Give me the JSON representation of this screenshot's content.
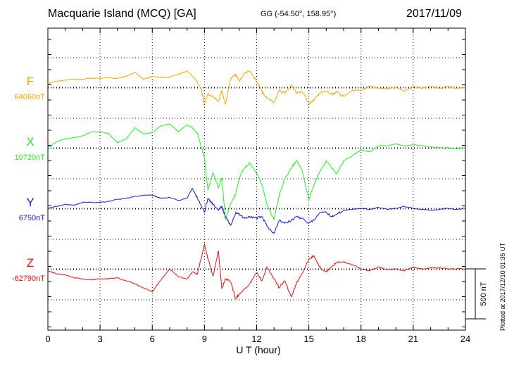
{
  "header": {
    "title": "Macquarie Island (MCQ)  [GA]",
    "coords": "GG (-54.50°, 158.95°)",
    "date": "2017/11/09"
  },
  "footer": {
    "plotted": "Plotted at 2017/12/10 01:35 UT"
  },
  "chart_data": {
    "type": "line",
    "xlabel": "U T (hour)",
    "xlim": [
      0,
      24
    ],
    "xticks": [
      "0",
      "3",
      "6",
      "9",
      "12",
      "15",
      "18",
      "21",
      "24"
    ],
    "scale_bar_label": "500 nT",
    "scale_bar_nT": 500,
    "grid": true,
    "series": [
      {
        "name": "F",
        "baseline_label": "64060nT",
        "color": "#f0a800",
        "x": [
          0,
          0.5,
          1,
          1.5,
          2,
          2.5,
          3,
          3.5,
          4,
          4.5,
          5,
          5.5,
          6,
          6.5,
          7,
          7.5,
          8,
          8.5,
          8.8,
          9,
          9.2,
          9.5,
          9.8,
          10,
          10.2,
          10.5,
          10.8,
          11,
          11.3,
          11.6,
          12,
          12.3,
          12.6,
          13,
          13.3,
          13.6,
          14,
          14.3,
          14.6,
          15,
          15.3,
          15.6,
          16,
          16.3,
          16.6,
          17,
          17.5,
          18,
          18.5,
          19,
          19.5,
          20,
          20.5,
          21,
          21.5,
          22,
          22.5,
          23,
          23.5,
          24
        ],
        "y": [
          40,
          60,
          70,
          80,
          80,
          90,
          90,
          95,
          90,
          110,
          150,
          80,
          110,
          100,
          100,
          130,
          160,
          80,
          -20,
          -160,
          -70,
          -90,
          -140,
          -30,
          -170,
          80,
          130,
          60,
          140,
          160,
          60,
          -40,
          -110,
          -150,
          -30,
          -60,
          20,
          -60,
          -40,
          -160,
          -130,
          -60,
          -40,
          -70,
          -50,
          -90,
          -30,
          -30,
          10,
          -10,
          -20,
          0,
          -40,
          10,
          -10,
          10,
          -10,
          10,
          -10,
          0
        ]
      },
      {
        "name": "X",
        "baseline_label": "10720nT",
        "color": "#22ee22",
        "x": [
          0,
          0.5,
          1,
          1.5,
          2,
          2.5,
          3,
          3.5,
          4,
          4.5,
          5,
          5.5,
          6,
          6.5,
          7,
          7.5,
          8,
          8.3,
          8.6,
          9,
          9.2,
          9.5,
          9.8,
          10,
          10.2,
          10.5,
          10.8,
          11,
          11.3,
          11.6,
          12,
          12.3,
          12.6,
          13,
          13.3,
          13.6,
          14,
          14.3,
          14.6,
          15,
          15.3,
          15.6,
          16,
          16.3,
          16.6,
          17,
          17.5,
          18,
          18.5,
          19,
          19.5,
          20,
          20.5,
          21,
          21.5,
          22,
          22.5,
          23,
          23.5,
          24
        ],
        "y": [
          0,
          60,
          90,
          100,
          120,
          160,
          160,
          140,
          50,
          90,
          200,
          140,
          150,
          220,
          240,
          160,
          230,
          200,
          140,
          -100,
          -420,
          -250,
          -400,
          -300,
          -720,
          -560,
          -460,
          -300,
          -200,
          -150,
          -250,
          -370,
          -570,
          -720,
          -470,
          -320,
          -200,
          -130,
          -220,
          -520,
          -370,
          -250,
          -130,
          -200,
          -260,
          -130,
          -80,
          -20,
          -40,
          20,
          20,
          40,
          20,
          30,
          20,
          10,
          0,
          0,
          -10,
          0
        ]
      },
      {
        "name": "Y",
        "baseline_label": "6750nT",
        "color": "#1a1ad0",
        "x": [
          0,
          0.5,
          1,
          1.5,
          2,
          2.5,
          3,
          3.5,
          4,
          4.5,
          5,
          5.5,
          6,
          6.5,
          7,
          7.5,
          8,
          8.3,
          8.6,
          9,
          9.2,
          9.5,
          9.8,
          10,
          10.2,
          10.5,
          10.8,
          11,
          11.3,
          11.6,
          12,
          12.3,
          12.6,
          13,
          13.3,
          13.6,
          14,
          14.3,
          14.6,
          15,
          15.3,
          15.6,
          16,
          16.3,
          16.6,
          17,
          17.5,
          18,
          18.5,
          19,
          19.5,
          20,
          20.5,
          21,
          21.5,
          22,
          22.5,
          23,
          23.5,
          24
        ],
        "y": [
          0,
          20,
          40,
          30,
          60,
          60,
          60,
          70,
          90,
          100,
          120,
          130,
          130,
          100,
          110,
          80,
          100,
          200,
          100,
          -40,
          100,
          40,
          -20,
          20,
          -80,
          -170,
          -40,
          -60,
          -100,
          -80,
          -100,
          -80,
          -180,
          -250,
          -120,
          -150,
          -120,
          -80,
          -100,
          -150,
          -120,
          -50,
          -40,
          -80,
          -60,
          -20,
          -10,
          0,
          -10,
          10,
          -10,
          0,
          20,
          0,
          -10,
          -20,
          -10,
          0,
          -10,
          0
        ]
      },
      {
        "name": "Z",
        "baseline_label": "-62790nT",
        "color": "#e01010",
        "x": [
          0,
          0.5,
          1,
          1.5,
          2,
          2.5,
          3,
          3.5,
          4,
          4.5,
          5,
          5.5,
          6,
          6.5,
          7,
          7.5,
          8,
          8.3,
          8.6,
          9,
          9.2,
          9.5,
          9.8,
          10,
          10.2,
          10.5,
          10.8,
          11,
          11.3,
          11.6,
          12,
          12.3,
          12.6,
          13,
          13.3,
          13.6,
          14,
          14.3,
          14.6,
          15,
          15.3,
          15.6,
          16,
          16.3,
          16.6,
          17,
          17.5,
          18,
          18.5,
          19,
          19.5,
          20,
          20.5,
          21,
          21.5,
          22,
          22.5,
          23,
          23.5,
          24
        ],
        "y": [
          -20,
          -50,
          -60,
          -90,
          -100,
          -110,
          -100,
          -100,
          -90,
          -120,
          -150,
          -190,
          -230,
          -110,
          0,
          -80,
          -100,
          -30,
          -50,
          250,
          100,
          -70,
          180,
          -200,
          -100,
          -130,
          -300,
          -250,
          -200,
          -150,
          -40,
          -120,
          20,
          -100,
          -190,
          -120,
          -280,
          -140,
          -50,
          100,
          130,
          20,
          -30,
          20,
          60,
          70,
          40,
          0,
          -20,
          20,
          -10,
          0,
          -20,
          20,
          0,
          10,
          10,
          0,
          0,
          0
        ]
      }
    ]
  }
}
